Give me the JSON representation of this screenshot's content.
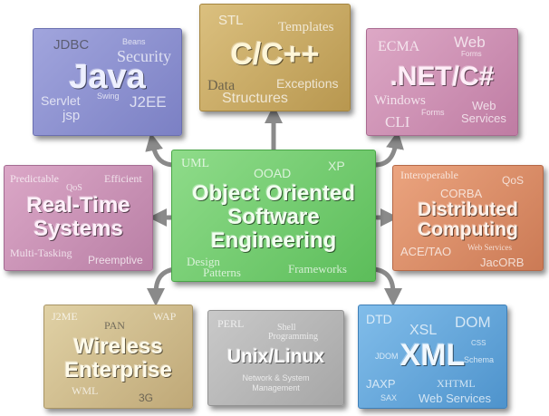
{
  "center": {
    "title_lines": [
      "Object Oriented",
      "Software",
      "Engineering"
    ],
    "keywords": {
      "uml": "UML",
      "ooad": "OOAD",
      "xp": "XP",
      "design": "Design",
      "patterns": "Patterns",
      "frameworks": "Frameworks"
    },
    "color": "#6fcb6c"
  },
  "java": {
    "title": "Java",
    "keywords": {
      "jdbc": "JDBC",
      "beans": "Beans",
      "security": "Security",
      "servlet": "Servlet",
      "swing": "Swing",
      "jsp": "jsp",
      "j2ee": "J2EE"
    },
    "color": "#8e93d2"
  },
  "cpp": {
    "title": "C/C++",
    "keywords": {
      "stl": "STL",
      "templates": "Templates",
      "data": "Data",
      "structures": "Structures",
      "exceptions": "Exceptions"
    },
    "color": "#cbad67"
  },
  "net": {
    "title": ".NET/C#",
    "keywords": {
      "ecma": "ECMA",
      "web": "Web",
      "forms": "Forms",
      "windows": "Windows",
      "forms2": "Forms",
      "cli": "CLI",
      "web2": "Web",
      "services": "Services"
    },
    "color": "#d092b6"
  },
  "realtime": {
    "title_lines": [
      "Real-Time",
      "Systems"
    ],
    "keywords": {
      "predictable": "Predictable",
      "efficient": "Efficient",
      "qos": "QoS",
      "multitasking": "Multi-Tasking",
      "preemptive": "Preemptive"
    },
    "color": "#cb94b7"
  },
  "distributed": {
    "title_lines": [
      "Distributed",
      "Computing"
    ],
    "keywords": {
      "interoperable": "Interoperable",
      "qos": "QoS",
      "corba": "CORBA",
      "acetao": "ACE/TAO",
      "webservices": "Web Services",
      "jacorb": "JacORB"
    },
    "color": "#de8f68"
  },
  "wireless": {
    "title_lines": [
      "Wireless",
      "Enterprise"
    ],
    "keywords": {
      "j2me": "J2ME",
      "wap": "WAP",
      "pan": "PAN",
      "wml": "WML",
      "g3": "3G"
    },
    "color": "#d1bf8e"
  },
  "unix": {
    "title": "Unix/Linux",
    "keywords": {
      "perl": "PERL",
      "shell": "Shell",
      "programming": "Programming",
      "network": "Network & System",
      "management": "Management"
    },
    "color": "#b8b8b8"
  },
  "xml": {
    "title": "XML",
    "keywords": {
      "dtd": "DTD",
      "xsl": "XSL",
      "dom": "DOM",
      "css": "CSS",
      "jdom": "JDOM",
      "schema": "Schema",
      "jaxp": "JAXP",
      "xhtml": "XHTML",
      "sax": "SAX",
      "webservices": "Web Services"
    },
    "color": "#66a8dc"
  },
  "arrow_color": "#8a8a8a"
}
